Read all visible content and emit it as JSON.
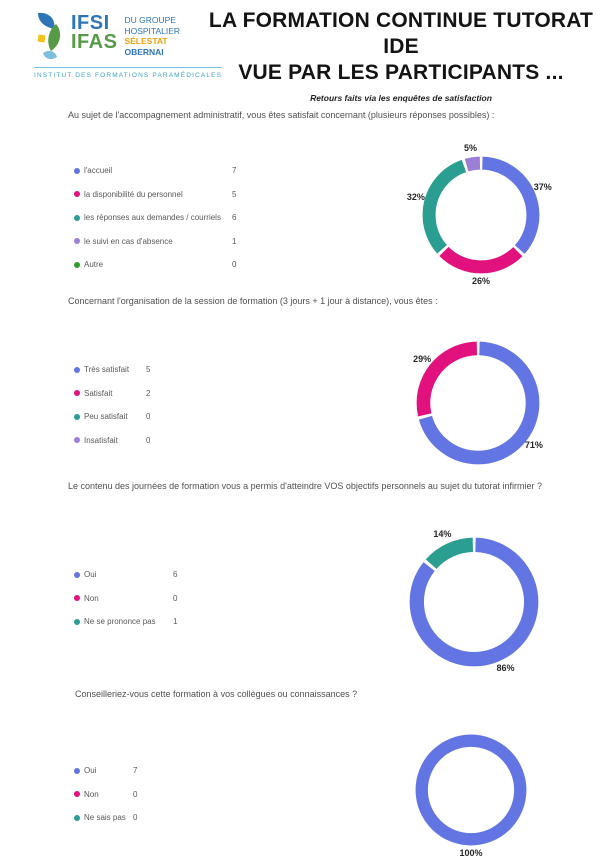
{
  "header": {
    "logo": {
      "acronym1": "IFSI",
      "acronym2": "IFAS",
      "org_line1": "DU GROUPE",
      "org_line2": "HOSPITALIER",
      "org_line3": "SÉLESTAT",
      "org_line4": "OBERNAI",
      "tagline": "INSTITUT DES FORMATIONS PARAMÉDICALES"
    },
    "title_line1": "LA FORMATION CONTINUE TUTORAT IDE",
    "title_line2": "VUE PAR LES PARTICIPANTS ...",
    "subtitle": "Retours faits via les enquêtes de satisfaction"
  },
  "colors": {
    "series_blue": "#6375E2",
    "series_magenta": "#E1127E",
    "series_teal": "#2A9E90",
    "series_purple": "#9B7FD4",
    "series_green": "#2E9E2E",
    "logo_blue": "#2E75B6",
    "logo_green": "#569A46",
    "logo_gold": "#EFA30C",
    "tagline_teal": "#41A3C4"
  },
  "chart_data": [
    {
      "type": "pie",
      "donut": true,
      "question": "Au sujet de l'accompagnement administratif, vous êtes satisfait concernant (plusieurs réponses possibles) :",
      "categories": [
        "l'accueil",
        "la disponibilité du personnel",
        "les réponses aux demandes / courriels",
        "le suivi en cas d'absence",
        "Autre"
      ],
      "values": [
        7,
        5,
        6,
        1,
        0
      ],
      "percents": [
        37,
        26,
        32,
        5,
        0
      ],
      "colors": [
        "#6375E2",
        "#E1127E",
        "#2A9E90",
        "#9B7FD4",
        "#2E9E2E"
      ],
      "legend_position": "left"
    },
    {
      "type": "pie",
      "donut": true,
      "question": "Concernant l'organisation de la session de formation (3 jours + 1 jour à distance), vous êtes :",
      "categories": [
        "Très satisfait",
        "Satisfait",
        "Peu satisfait",
        "Insatisfait"
      ],
      "values": [
        5,
        2,
        0,
        0
      ],
      "percents": [
        71,
        29,
        0,
        0
      ],
      "colors": [
        "#6375E2",
        "#E1127E",
        "#2A9E90",
        "#9B7FD4"
      ],
      "legend_position": "left"
    },
    {
      "type": "pie",
      "donut": true,
      "question": "Le contenu des journées de formation vous a permis d'atteindre VOS objectifs personnels au sujet du tutorat infirmier ?",
      "categories": [
        "Oui",
        "Non",
        "Ne se prononce pas"
      ],
      "values": [
        6,
        0,
        1
      ],
      "percents": [
        86,
        0,
        14
      ],
      "colors": [
        "#6375E2",
        "#E1127E",
        "#2A9E90"
      ],
      "legend_position": "left"
    },
    {
      "type": "pie",
      "donut": true,
      "question": "Conseilleriez-vous cette formation à vos collègues ou connaissances ?",
      "categories": [
        "Oui",
        "Non",
        "Ne sais pas"
      ],
      "values": [
        7,
        0,
        0
      ],
      "percents": [
        100,
        0,
        0
      ],
      "colors": [
        "#6375E2",
        "#E1127E",
        "#2A9E90"
      ],
      "legend_position": "left"
    }
  ]
}
